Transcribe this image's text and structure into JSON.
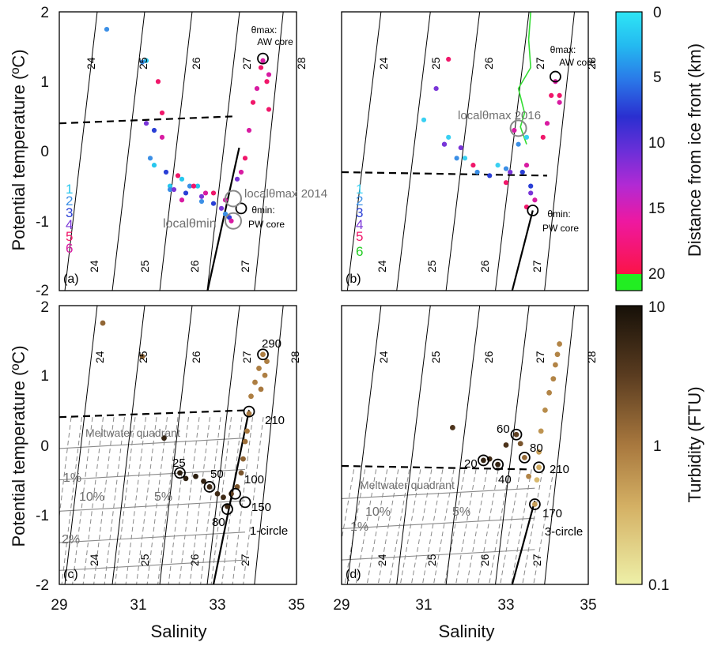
{
  "chart_data": [
    {
      "type": "scatter",
      "panel_label": "(a)",
      "xlim": [
        29,
        35
      ],
      "ylim": [
        -2,
        2
      ],
      "ytick_labels": [
        "2",
        "1",
        "0",
        "-1",
        "-2"
      ],
      "ylabel": "Potential temperature (ºC)",
      "xlabel": "",
      "isopycnals_top": [
        {
          "sigma": 24,
          "x_at_top": 30.0
        },
        {
          "sigma": 25,
          "x_at_top": 31.2
        },
        {
          "sigma": 26,
          "x_at_top": 32.4
        },
        {
          "sigma": 27,
          "x_at_top": 33.55
        },
        {
          "sigma": 28,
          "x_at_top": 34.6
        }
      ],
      "isopycnal_labels_top": [
        "24",
        "25",
        "26",
        "27",
        "28"
      ],
      "isopycnal_labels_bottom": [
        "24",
        "25",
        "26",
        "27"
      ],
      "profile_legend": [
        "1",
        "2",
        "3",
        "4",
        "5",
        "6"
      ],
      "annotations": {
        "theta_max": "θmax:",
        "aw_core": "AW core",
        "theta_min": "θmin:",
        "pw_core": "PW core",
        "local_max": "localθmax 2014",
        "local_min": "localθmin"
      },
      "dashed_line": [
        [
          29,
          0.4
        ],
        [
          33.4,
          0.5
        ]
      ],
      "mixing_line": [
        [
          32.75,
          -2.0
        ],
        [
          33.55,
          0.05
        ]
      ],
      "marked_points": [
        [
          34.15,
          1.33
        ],
        [
          33.6,
          -0.82
        ],
        [
          33.4,
          -1.0
        ],
        [
          33.4,
          -0.68
        ]
      ],
      "profiles": [
        {
          "name": "1",
          "color": "#27c7ee",
          "points": [
            [
              31.2,
              1.3
            ],
            [
              31.4,
              -0.2
            ],
            [
              31.8,
              -0.5
            ],
            [
              32.1,
              -0.4
            ],
            [
              32.5,
              -0.5
            ]
          ]
        },
        {
          "name": "2",
          "color": "#3b8fe6",
          "points": [
            [
              30.2,
              1.75
            ],
            [
              31.1,
              1.28
            ],
            [
              31.3,
              -0.1
            ],
            [
              31.8,
              -0.55
            ],
            [
              32.3,
              -0.5
            ],
            [
              32.6,
              -0.72
            ],
            [
              33.2,
              -0.9
            ]
          ]
        },
        {
          "name": "3",
          "color": "#2a3fd6",
          "points": [
            [
              31.4,
              0.3
            ],
            [
              31.7,
              -0.3
            ],
            [
              32.2,
              -0.6
            ],
            [
              32.9,
              -0.75
            ],
            [
              33.3,
              -0.95
            ]
          ]
        },
        {
          "name": "4",
          "color": "#7a35d8",
          "points": [
            [
              31.2,
              0.4
            ],
            [
              31.9,
              -0.55
            ],
            [
              32.6,
              -0.65
            ],
            [
              33.1,
              -0.82
            ],
            [
              33.5,
              -0.4
            ]
          ]
        },
        {
          "name": "5",
          "color": "#f0176a",
          "points": [
            [
              31.5,
              1.0
            ],
            [
              31.6,
              0.55
            ],
            [
              32.0,
              -0.35
            ],
            [
              32.4,
              -0.5
            ],
            [
              32.9,
              -0.6
            ],
            [
              33.7,
              -0.1
            ],
            [
              33.9,
              0.7
            ],
            [
              34.1,
              1.2
            ],
            [
              34.25,
              1.0
            ],
            [
              34.3,
              0.6
            ]
          ]
        },
        {
          "name": "6",
          "color": "#d81ba2",
          "points": [
            [
              31.6,
              0.2
            ],
            [
              32.1,
              -0.7
            ],
            [
              32.7,
              -0.6
            ],
            [
              33.2,
              -0.7
            ],
            [
              33.35,
              -1.0
            ],
            [
              33.6,
              -0.3
            ],
            [
              33.8,
              0.3
            ],
            [
              34.0,
              0.9
            ],
            [
              34.15,
              1.3
            ],
            [
              34.3,
              1.1
            ]
          ]
        }
      ]
    },
    {
      "type": "scatter",
      "panel_label": "(b)",
      "xlim": [
        29,
        35
      ],
      "ylim": [
        -2,
        2
      ],
      "isopycnal_labels_top": [
        "24",
        "25",
        "26",
        "27",
        "28"
      ],
      "isopycnal_labels_bottom": [
        "24",
        "25",
        "26",
        "27"
      ],
      "profile_legend": [
        "1",
        "2",
        "3",
        "4",
        "5",
        "6"
      ],
      "annotations": {
        "theta_max": "θmax:",
        "aw_core": "AW core",
        "theta_min": "θmin:",
        "pw_core": "PW core",
        "local_max": "localθmax 2016"
      },
      "dashed_line": [
        [
          29,
          -0.3
        ],
        [
          34.0,
          -0.35
        ]
      ],
      "mixing_line": [
        [
          33.15,
          -2.0
        ],
        [
          33.65,
          -0.85
        ]
      ],
      "marked_points": [
        [
          34.2,
          1.07
        ],
        [
          33.65,
          -0.85
        ],
        [
          33.3,
          0.33
        ]
      ],
      "profiles": [
        {
          "name": "1",
          "color": "#39d0f2",
          "points": [
            [
              31.0,
              0.45
            ],
            [
              31.6,
              0.2
            ],
            [
              32.0,
              -0.1
            ],
            [
              32.8,
              -0.2
            ],
            [
              33.5,
              0.2
            ]
          ]
        },
        {
          "name": "2",
          "color": "#3b8fe6",
          "points": [
            [
              31.8,
              -0.1
            ],
            [
              32.3,
              -0.3
            ],
            [
              33.0,
              -0.25
            ],
            [
              33.3,
              0.1
            ]
          ]
        },
        {
          "name": "3",
          "color": "#2a3fd6",
          "points": [
            [
              31.5,
              0.1
            ],
            [
              32.6,
              -0.35
            ],
            [
              33.4,
              -0.3
            ],
            [
              33.6,
              -0.5
            ]
          ]
        },
        {
          "name": "4",
          "color": "#7a35d8",
          "points": [
            [
              31.5,
              0.1
            ],
            [
              31.9,
              0.05
            ],
            [
              33.1,
              -0.3
            ],
            [
              33.6,
              -0.6
            ],
            [
              31.3,
              0.9
            ]
          ]
        },
        {
          "name": "5",
          "color": "#f0176a",
          "points": [
            [
              31.6,
              1.32
            ],
            [
              32.2,
              -0.2
            ],
            [
              33.0,
              -0.45
            ],
            [
              33.5,
              -0.8
            ],
            [
              33.9,
              0.2
            ],
            [
              34.1,
              0.8
            ],
            [
              34.3,
              0.8
            ]
          ]
        },
        {
          "name": "6",
          "color": "#d81ba2",
          "points": [
            [
              33.2,
              0.3
            ],
            [
              33.5,
              -0.2
            ],
            [
              33.7,
              -0.7
            ],
            [
              34.0,
              0.4
            ],
            [
              34.2,
              1.0
            ],
            [
              34.3,
              0.7
            ]
          ]
        }
      ],
      "green_profile": [
        [
          33.6,
          2.0
        ],
        [
          33.55,
          1.6
        ],
        [
          33.6,
          1.2
        ],
        [
          33.3,
          0.9
        ],
        [
          33.45,
          0.55
        ],
        [
          33.35,
          0.35
        ],
        [
          33.5,
          0.1
        ]
      ]
    },
    {
      "type": "scatter",
      "panel_label": "(c)",
      "xlim": [
        29,
        35
      ],
      "ylim": [
        -2,
        2
      ],
      "xtick_labels": [
        "29",
        "31",
        "33",
        "35"
      ],
      "ytick_labels": [
        "2",
        "1",
        "0",
        "-1",
        "-2"
      ],
      "xlabel": "Salinity",
      "ylabel": "Potential temperature (ºC)",
      "isopycnal_labels_top": [
        "24",
        "25",
        "26",
        "27",
        "28"
      ],
      "isopycnal_labels_bottom": [
        "24",
        "25",
        "26",
        "27"
      ],
      "quadrant_label": "Meltwater quadrant",
      "percent_labels": [
        "1%",
        "10%",
        "5%",
        "2%"
      ],
      "circle_label": "1-circle",
      "depth_labels": [
        {
          "label": "290",
          "s": 34.15,
          "t": 1.3
        },
        {
          "label": "210",
          "s": 33.8,
          "t": 0.48
        },
        {
          "label": "25",
          "s": 32.05,
          "t": -0.4
        },
        {
          "label": "50",
          "s": 32.8,
          "t": -0.6
        },
        {
          "label": "100",
          "s": 33.45,
          "t": -0.7
        },
        {
          "label": "150",
          "s": 33.7,
          "t": -0.82
        },
        {
          "label": "80",
          "s": 33.25,
          "t": -0.92
        }
      ],
      "dashed_line": [
        [
          29,
          0.4
        ],
        [
          33.8,
          0.5
        ]
      ],
      "mixing_line": [
        [
          32.9,
          -2.0
        ],
        [
          33.8,
          0.5
        ]
      ],
      "turbidity_points": [
        [
          30.1,
          1.75,
          1.4
        ],
        [
          31.1,
          1.27,
          1.4
        ],
        [
          31.65,
          0.1,
          6
        ],
        [
          32.05,
          -0.4,
          7
        ],
        [
          32.2,
          -0.48,
          7
        ],
        [
          32.45,
          -0.45,
          7
        ],
        [
          32.65,
          -0.52,
          6
        ],
        [
          32.8,
          -0.6,
          5
        ],
        [
          33.0,
          -0.7,
          5
        ],
        [
          33.15,
          -0.75,
          5
        ],
        [
          33.25,
          -0.88,
          5
        ],
        [
          33.35,
          -0.7,
          3
        ],
        [
          33.5,
          -0.6,
          2
        ],
        [
          33.6,
          -0.4,
          2
        ],
        [
          33.65,
          -0.2,
          1.5
        ],
        [
          33.7,
          0.05,
          1.2
        ],
        [
          33.75,
          0.2,
          1
        ],
        [
          33.8,
          0.45,
          1
        ],
        [
          33.85,
          0.7,
          0.9
        ],
        [
          33.95,
          0.9,
          0.9
        ],
        [
          34.05,
          1.1,
          0.9
        ],
        [
          34.15,
          1.3,
          0.9
        ],
        [
          34.25,
          1.2,
          0.9
        ],
        [
          34.2,
          1.0,
          0.9
        ],
        [
          34.1,
          0.8,
          1.0
        ]
      ]
    },
    {
      "type": "scatter",
      "panel_label": "(d)",
      "xlim": [
        29,
        35
      ],
      "ylim": [
        -2,
        2
      ],
      "xtick_labels": [
        "29",
        "31",
        "33",
        "35"
      ],
      "xlabel": "Salinity",
      "isopycnal_labels_top": [
        "24",
        "25",
        "26",
        "27",
        "28"
      ],
      "isopycnal_labels_bottom": [
        "24",
        "25",
        "26",
        "27"
      ],
      "quadrant_label": "Meltwater quadrant",
      "percent_labels": [
        "10%",
        "5%",
        "1%"
      ],
      "circle_label": "3-circle",
      "depth_labels": [
        {
          "label": "60",
          "s": 33.25,
          "t": 0.15
        },
        {
          "label": "20",
          "s": 32.45,
          "t": -0.22
        },
        {
          "label": "40",
          "s": 32.8,
          "t": -0.28
        },
        {
          "label": "80",
          "s": 33.45,
          "t": -0.18
        },
        {
          "label": "210",
          "s": 33.8,
          "t": -0.32
        },
        {
          "label": "170",
          "s": 33.7,
          "t": -0.85
        }
      ],
      "dashed_line": [
        [
          29,
          -0.3
        ],
        [
          33.6,
          -0.35
        ]
      ],
      "mixing_line": [
        [
          33.15,
          -2.0
        ],
        [
          33.7,
          -0.8
        ]
      ],
      "turbidity_points": [
        [
          31.7,
          0.25,
          4
        ],
        [
          32.45,
          -0.22,
          6
        ],
        [
          32.6,
          -0.2,
          5
        ],
        [
          32.8,
          -0.28,
          6
        ],
        [
          33.0,
          0.0,
          4
        ],
        [
          33.25,
          0.15,
          3
        ],
        [
          33.35,
          0.02,
          2
        ],
        [
          33.45,
          -0.18,
          1.3
        ],
        [
          33.55,
          -0.45,
          0.8
        ],
        [
          33.7,
          -0.85,
          0.5
        ],
        [
          33.75,
          -0.5,
          0.3
        ],
        [
          33.8,
          -0.32,
          0.4
        ],
        [
          33.8,
          -0.1,
          0.5
        ],
        [
          33.85,
          0.2,
          0.6
        ],
        [
          33.95,
          0.5,
          0.7
        ],
        [
          34.05,
          0.75,
          0.8
        ],
        [
          34.15,
          0.95,
          0.8
        ],
        [
          34.2,
          1.15,
          0.8
        ],
        [
          34.25,
          1.3,
          0.8
        ],
        [
          34.3,
          1.45,
          0.8
        ]
      ]
    }
  ],
  "colorbars": {
    "distance": {
      "label": "Distance from ice front (km)",
      "tick_labels": [
        "0",
        "5",
        "10",
        "15",
        "20"
      ]
    },
    "turbidity": {
      "label": "Turbidity (FTU)",
      "tick_labels": [
        "10",
        "1",
        "0.1"
      ]
    }
  }
}
